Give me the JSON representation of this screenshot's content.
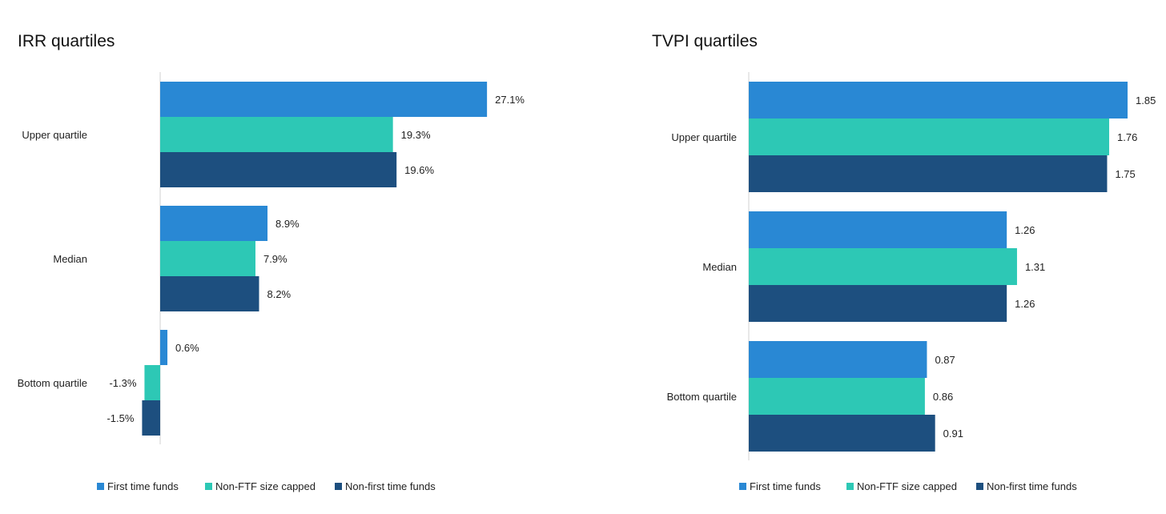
{
  "colors": {
    "first_time_funds": "#2988d4",
    "non_ftf_size_capped": "#2dc8b5",
    "non_first_time_funds": "#1d4f7f",
    "axis": "#d0d0d0",
    "text": "#222222"
  },
  "chart_data": [
    {
      "type": "bar",
      "orientation": "horizontal",
      "title": "IRR quartiles",
      "categories": [
        "Upper quartile",
        "Median",
        "Bottom quartile"
      ],
      "series": [
        {
          "name": "First time funds",
          "values": [
            27.1,
            8.9,
            0.6
          ],
          "labels": [
            "27.1%",
            "8.9%",
            "0.6%"
          ],
          "color_key": "first_time_funds"
        },
        {
          "name": "Non-FTF size capped",
          "values": [
            19.3,
            7.9,
            -1.3
          ],
          "labels": [
            "19.3%",
            "7.9%",
            "-1.3%"
          ],
          "color_key": "non_ftf_size_capped"
        },
        {
          "name": "Non-first time funds",
          "values": [
            19.6,
            8.2,
            -1.5
          ],
          "labels": [
            "19.6%",
            "8.2%",
            "-1.5%"
          ],
          "color_key": "non_first_time_funds"
        }
      ],
      "xlim": [
        -1.5,
        27.1
      ],
      "grid": false,
      "legend": "bottom"
    },
    {
      "type": "bar",
      "orientation": "horizontal",
      "title": "TVPI quartiles",
      "categories": [
        "Upper quartile",
        "Median",
        "Bottom quartile"
      ],
      "series": [
        {
          "name": "First time funds",
          "values": [
            1.85,
            1.26,
            0.87
          ],
          "labels": [
            "1.85",
            "1.26",
            "0.87"
          ],
          "color_key": "first_time_funds"
        },
        {
          "name": "Non-FTF size capped",
          "values": [
            1.76,
            1.31,
            0.86
          ],
          "labels": [
            "1.76",
            "1.31",
            "0.86"
          ],
          "color_key": "non_ftf_size_capped"
        },
        {
          "name": "Non-first time funds",
          "values": [
            1.75,
            1.26,
            0.91
          ],
          "labels": [
            "1.75",
            "1.26",
            "0.91"
          ],
          "color_key": "non_first_time_funds"
        }
      ],
      "xlim": [
        0,
        1.85
      ],
      "grid": false,
      "legend": "bottom"
    }
  ]
}
